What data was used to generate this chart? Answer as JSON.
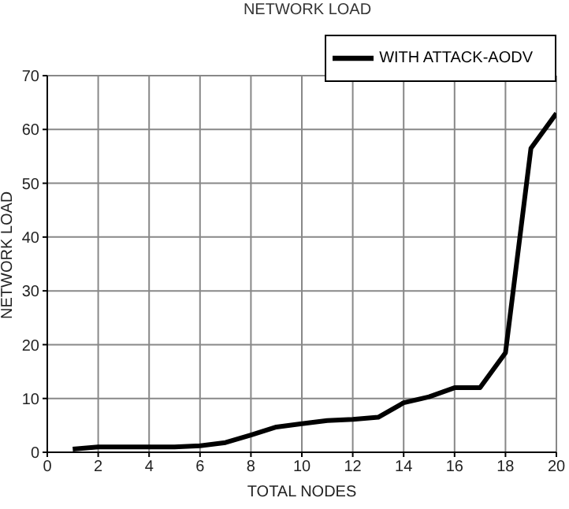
{
  "chart_data": {
    "type": "line",
    "title": "NETWORK LOAD",
    "xlabel": "TOTAL NODES",
    "ylabel": "NETWORK LOAD",
    "x": [
      1,
      2,
      3,
      4,
      5,
      6,
      7,
      8,
      9,
      10,
      11,
      12,
      13,
      14,
      15,
      16,
      17,
      18,
      19,
      20
    ],
    "series": [
      {
        "name": "WITH ATTACK-AODV",
        "color": "#000000",
        "values": [
          0.6,
          1.0,
          1.0,
          1.0,
          1.0,
          1.2,
          1.8,
          3.2,
          4.7,
          5.3,
          5.9,
          6.1,
          6.5,
          9.2,
          10.3,
          12,
          12,
          18.5,
          56.5,
          63
        ]
      }
    ],
    "xlim": [
      0,
      20
    ],
    "xticks": [
      0,
      2,
      4,
      6,
      8,
      10,
      12,
      14,
      16,
      18,
      20
    ],
    "ylim": [
      0,
      70
    ],
    "yticks": [
      0,
      10,
      20,
      30,
      40,
      50,
      60,
      70
    ],
    "grid": true,
    "legend": "top right",
    "marker": "none",
    "line_style": "solid"
  }
}
